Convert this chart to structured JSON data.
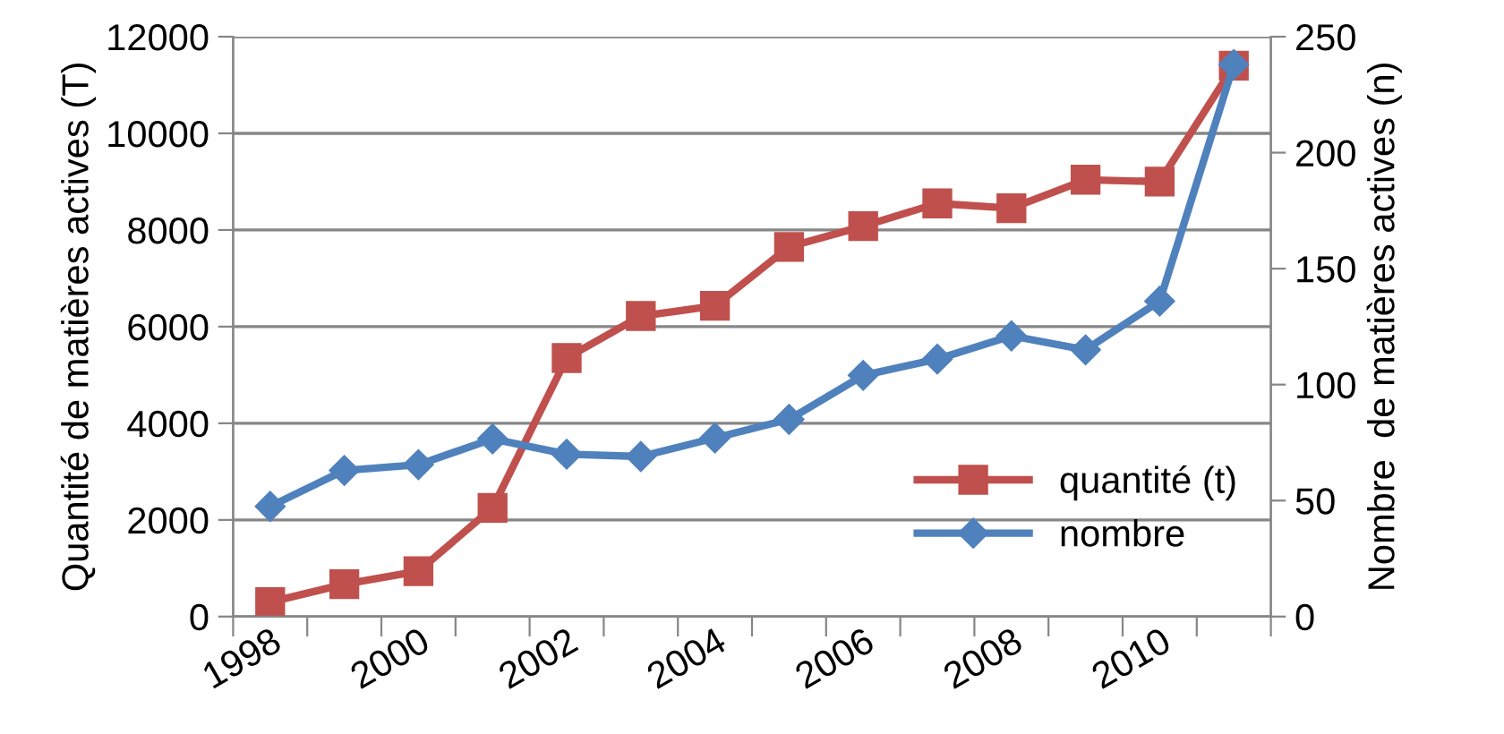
{
  "chart_data": {
    "type": "line",
    "ylabel": "Quantité de matières actives (T)",
    "y2label": "Nombre  de matières actives (n)",
    "categories": [
      "1998",
      null,
      "2000",
      null,
      "2002",
      null,
      "2004",
      null,
      "2006",
      null,
      "2008",
      null,
      "2010",
      null
    ],
    "series": [
      {
        "name": "quantité (t)",
        "color": "#c0504d",
        "marker": "square",
        "values": [
          300,
          670,
          940,
          2250,
          5350,
          6220,
          6430,
          7650,
          8080,
          8550,
          8450,
          9040,
          9000,
          11400
        ]
      },
      {
        "name": "nombre",
        "color": "#4f81bd",
        "marker": "diamond",
        "axis": "y2",
        "values": [
          47.5,
          63,
          65.5,
          76.6,
          70,
          69,
          77,
          85,
          104,
          111,
          121,
          115,
          136,
          238
        ]
      }
    ],
    "ylim": [
      0,
      12000
    ],
    "yticks": [
      0,
      2000,
      4000,
      6000,
      8000,
      10000,
      12000
    ],
    "y2lim": [
      0,
      250
    ],
    "y2ticks": [
      0,
      50,
      100,
      150,
      200,
      250
    ],
    "grid": "y",
    "legend": "bottom right",
    "line_style": "solid"
  }
}
